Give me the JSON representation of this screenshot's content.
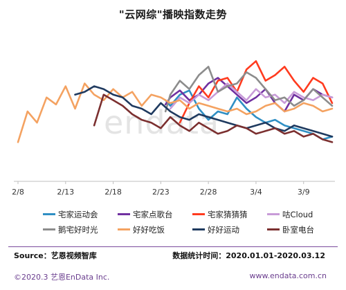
{
  "title": "\"云网综\"播映指数走势",
  "watermark_text": "endata",
  "chart_data": {
    "type": "line",
    "title": "\"云网综\"播映指数走势",
    "xlabel": "",
    "ylabel": "",
    "x_ticks": [
      "2/8",
      "2/13",
      "2/18",
      "2/23",
      "2/28",
      "3/4",
      "3/9"
    ],
    "x_range": [
      0,
      33
    ],
    "y_range": [
      0,
      100
    ],
    "grid": false,
    "legend_position": "bottom",
    "series": [
      {
        "name": "宅家运动会",
        "color": "#2f8fc4",
        "x": [
          15.5,
          16,
          17,
          18,
          19,
          20,
          21,
          22,
          23,
          24,
          25,
          26,
          27,
          28,
          29,
          30,
          31,
          32,
          33
        ],
        "y": [
          58,
          54,
          62,
          65,
          52,
          44,
          50,
          48,
          60,
          52,
          46,
          42,
          44,
          40,
          38,
          36,
          34,
          30,
          32
        ]
      },
      {
        "name": "宅家点歌台",
        "color": "#7030a0",
        "x": [
          15.5,
          16,
          17,
          18,
          19,
          20,
          21,
          22,
          23,
          24,
          25,
          26,
          27,
          28,
          29,
          30,
          31,
          32,
          33
        ],
        "y": [
          55,
          60,
          65,
          58,
          62,
          70,
          74,
          68,
          62,
          56,
          60,
          66,
          56,
          50,
          62,
          58,
          66,
          62,
          60
        ]
      },
      {
        "name": "宅家猜猜猜",
        "color": "#ff3b1f",
        "x": [
          17,
          18,
          19,
          20,
          21,
          22,
          23,
          24,
          25,
          26,
          27,
          28,
          29,
          30,
          31,
          32,
          33
        ],
        "y": [
          42,
          56,
          68,
          60,
          72,
          74,
          64,
          80,
          86,
          72,
          76,
          82,
          72,
          64,
          74,
          70,
          56
        ]
      },
      {
        "name": "咕Cloud",
        "color": "#c89bd8",
        "x": [
          16,
          17,
          18,
          19,
          20,
          21,
          22,
          23,
          24,
          25,
          26,
          27,
          28,
          29,
          30,
          31,
          32,
          33
        ],
        "y": [
          52,
          60,
          56,
          62,
          58,
          64,
          70,
          64,
          58,
          66,
          60,
          62,
          56,
          64,
          60,
          58,
          62,
          60
        ]
      },
      {
        "name": "鹅宅好时光",
        "color": "#8c8c8c",
        "x": [
          15.5,
          16,
          17,
          18,
          19,
          20,
          21,
          22,
          23,
          24,
          25,
          26,
          27,
          28,
          29,
          30,
          31,
          32,
          33
        ],
        "y": [
          50,
          62,
          72,
          66,
          76,
          82,
          64,
          68,
          70,
          78,
          74,
          66,
          58,
          60,
          54,
          58,
          66,
          60,
          54
        ]
      },
      {
        "name": "好好吃饭",
        "color": "#f4a261",
        "x": [
          0,
          1,
          2,
          3,
          4,
          5,
          6,
          7,
          8,
          9,
          10,
          11,
          12,
          13,
          14,
          15,
          16,
          17,
          18,
          19,
          20,
          21,
          22,
          23,
          24,
          25,
          26,
          27,
          28,
          29,
          30,
          31,
          32,
          33
        ],
        "y": [
          28,
          50,
          42,
          60,
          55,
          68,
          52,
          70,
          62,
          58,
          66,
          60,
          64,
          54,
          62,
          60,
          56,
          58,
          52,
          56,
          54,
          52,
          50,
          52,
          48,
          50,
          54,
          56,
          50,
          52,
          56,
          54,
          50,
          52
        ]
      },
      {
        "name": "好好运动",
        "color": "#1f3a5f",
        "x": [
          6,
          7,
          8,
          9,
          10,
          11,
          12,
          13,
          14,
          15,
          16,
          17,
          18,
          19,
          20,
          21,
          22,
          23,
          24,
          25,
          26,
          27,
          28,
          29,
          30,
          31,
          32,
          33
        ],
        "y": [
          62,
          64,
          68,
          66,
          62,
          60,
          54,
          52,
          48,
          56,
          50,
          46,
          44,
          48,
          46,
          44,
          42,
          40,
          38,
          40,
          42,
          38,
          36,
          40,
          38,
          36,
          34,
          32
        ]
      },
      {
        "name": "卧室电台",
        "color": "#7b2f2f",
        "x": [
          8,
          9,
          10,
          11,
          12,
          13,
          14,
          15,
          16,
          17,
          18,
          19,
          20,
          21,
          22,
          23,
          24,
          25,
          26,
          27,
          28,
          29,
          30,
          31,
          32,
          33
        ],
        "y": [
          40,
          62,
          58,
          54,
          48,
          44,
          42,
          38,
          46,
          40,
          36,
          42,
          38,
          34,
          36,
          40,
          38,
          34,
          36,
          38,
          34,
          36,
          32,
          34,
          30,
          28
        ]
      }
    ]
  },
  "source": "Source：艺恩视频智库",
  "period": "数据统计时间：2020.01.01-2020.03.12",
  "copyright": "©2020.3 艺恩EnData Inc.",
  "site": "www.endata.com.cn"
}
